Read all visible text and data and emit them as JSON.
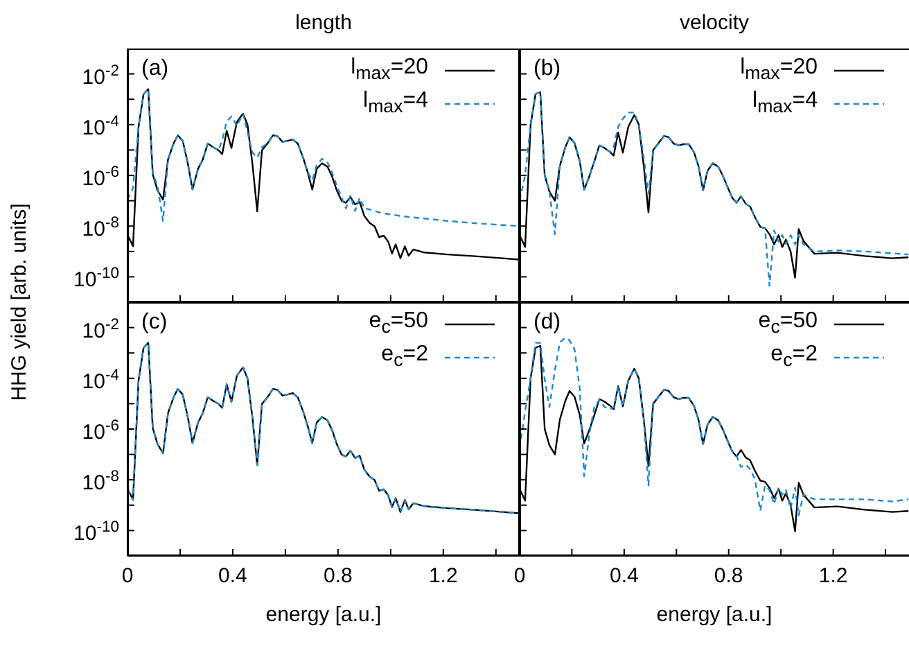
{
  "chart_data": [
    {
      "type": "line",
      "title": "length",
      "ylabel": "HHG yield [arb. units]",
      "annotations": [
        "(a)"
      ],
      "log": "y",
      "legend": "top right",
      "tick_labels": "y",
      "xlim": [
        0,
        1.49
      ],
      "ylim": [
        1e-11,
        0.1
      ],
      "xticks": [
        0,
        {
          "value": 0.2,
          "label": null
        },
        0.4,
        {
          "value": 0.6,
          "label": null
        },
        0.8,
        {
          "value": 1.0,
          "label": null
        },
        1.2,
        {
          "value": 1.4,
          "label": null
        }
      ],
      "yticks": [
        {
          "value": 1e-11,
          "label": null
        },
        {
          "value": 1e-10,
          "label": "10$^{-10}$"
        },
        {
          "value": 1e-09,
          "label": null
        },
        {
          "value": 1e-08,
          "label": "10$^{-8}$"
        },
        {
          "value": 1e-07,
          "label": null
        },
        {
          "value": 1e-06,
          "label": "10$^{-6}$"
        },
        {
          "value": 1e-05,
          "label": null
        },
        {
          "value": 0.0001,
          "label": "10$^{-4}$"
        },
        {
          "value": 0.001,
          "label": null
        },
        {
          "value": 0.01,
          "label": "10$^{-2}$"
        },
        {
          "value": 0.1,
          "label": null
        }
      ],
      "x": [
        0,
        0.021,
        0.042,
        0.061,
        0.079,
        0.096,
        0.114,
        0.135,
        0.154,
        0.175,
        0.191,
        0.21,
        0.23,
        0.247,
        0.268,
        0.286,
        0.305,
        0.325,
        0.346,
        0.36,
        0.377,
        0.395,
        0.416,
        0.439,
        0.456,
        0.475,
        0.493,
        0.511,
        0.532,
        0.553,
        0.57,
        0.589,
        0.609,
        0.628,
        0.647,
        0.667,
        0.684,
        0.702,
        0.719,
        0.739,
        0.76,
        0.777,
        0.795,
        0.814,
        0.83,
        0.847,
        0.865,
        0.882,
        0.9,
        0.921,
        0.939,
        0.956,
        0.974,
        0.991,
        1.005,
        1.019,
        1.037,
        1.054,
        1.068,
        1.086,
        1.128,
        1.216,
        1.321,
        1.426,
        1.488
      ],
      "series": [
        {
          "name": "l$_{max}$=20",
          "color": "#000000",
          "line_style": "solid",
          "values": [
            4.6e-09,
            1.6e-09,
            8.1e-05,
            0.0016,
            0.0025,
            1.1e-06,
            2.6e-07,
            1.1e-07,
            4.2e-06,
            1.8e-05,
            3.8e-05,
            2.3e-05,
            2.7e-06,
            2.8e-07,
            1.8e-06,
            4.2e-06,
            1.8e-05,
            1.3e-05,
            9.8e-06,
            6.9e-06,
            5.8e-05,
            1.2e-05,
            0.00013,
            0.00027,
            0.0001,
            2.7e-06,
            3.8e-08,
            9.8e-06,
            1.8e-05,
            3.8e-05,
            3.5e-05,
            2.1e-05,
            2.3e-05,
            2.6e-05,
            1.8e-05,
            5.1e-06,
            1.4e-06,
            2.8e-07,
            1.8e-06,
            3e-06,
            2.2e-06,
            9.3e-07,
            2.6e-07,
            9.8e-08,
            8.3e-08,
            1.4e-07,
            7.2e-08,
            8.9e-08,
            2.5e-08,
            1.3e-08,
            9.8e-09,
            3.7e-09,
            4.2e-09,
            2.4e-09,
            8.3e-10,
            1.9e-09,
            5.4e-10,
            1.6e-09,
            6.8e-10,
            1.2e-09,
            9.1e-10,
            7.6e-10,
            6.5e-10,
            5.4e-10,
            4.8e-10
          ]
        },
        {
          "name": "l$_{max}$=4",
          "color": "#1e88d0",
          "line_style": "dashed",
          "values": [
            1.1e-07,
            3.2e-07,
            8.1e-05,
            0.0016,
            0.0025,
            1.1e-06,
            4e-07,
            1.6e-08,
            4.2e-06,
            1.8e-05,
            3.8e-05,
            2.3e-05,
            2.7e-06,
            2.8e-07,
            1.8e-06,
            4.2e-06,
            1.8e-05,
            1.3e-05,
            9.8e-06,
            2.5e-05,
            0.00013,
            0.00021,
            8.9e-05,
            0.00027,
            5e-05,
            7.9e-06,
            5e-06,
            1.3e-05,
            1.8e-05,
            3.8e-05,
            3.5e-05,
            2.1e-05,
            2.3e-05,
            2.6e-05,
            1.8e-05,
            5.1e-06,
            1.4e-06,
            6.3e-07,
            2.5e-06,
            4.5e-06,
            3.2e-06,
            1.3e-06,
            4e-07,
            1.3e-07,
            5e-08,
            1.6e-07,
            4e-08,
            1.3e-07,
            5e-08,
            4.5e-08,
            4e-08,
            3.5e-08,
            3.2e-08,
            3e-08,
            2.8e-08,
            2.7e-08,
            2.5e-08,
            2.4e-08,
            2.3e-08,
            2.2e-08,
            2e-08,
            1.6e-08,
            1.3e-08,
            1.1e-08,
            1e-08
          ]
        }
      ]
    },
    {
      "type": "line",
      "title": "velocity",
      "annotations": [
        "(b)"
      ],
      "log": "y",
      "legend": "top right",
      "tick_labels": false,
      "xlim": [
        0,
        1.49
      ],
      "ylim": [
        1e-11,
        0.1
      ],
      "xticks": [
        0,
        {
          "value": 0.2,
          "label": null
        },
        0.4,
        {
          "value": 0.6,
          "label": null
        },
        0.8,
        {
          "value": 1.0,
          "label": null
        },
        1.2,
        {
          "value": 1.4,
          "label": null
        }
      ],
      "yticks": [
        {
          "value": 1e-11,
          "label": null
        },
        {
          "value": 1e-10,
          "label": null
        },
        {
          "value": 1e-09,
          "label": null
        },
        {
          "value": 1e-08,
          "label": null
        },
        {
          "value": 1e-07,
          "label": null
        },
        {
          "value": 1e-06,
          "label": null
        },
        {
          "value": 1e-05,
          "label": null
        },
        {
          "value": 0.0001,
          "label": null
        },
        {
          "value": 0.001,
          "label": null
        },
        {
          "value": 0.01,
          "label": null
        },
        {
          "value": 0.1,
          "label": null
        }
      ],
      "x": [
        0,
        0.021,
        0.042,
        0.061,
        0.079,
        0.096,
        0.114,
        0.135,
        0.154,
        0.175,
        0.191,
        0.21,
        0.23,
        0.247,
        0.268,
        0.286,
        0.305,
        0.325,
        0.346,
        0.36,
        0.377,
        0.395,
        0.416,
        0.439,
        0.456,
        0.475,
        0.493,
        0.511,
        0.532,
        0.553,
        0.57,
        0.589,
        0.609,
        0.628,
        0.647,
        0.667,
        0.684,
        0.702,
        0.719,
        0.739,
        0.76,
        0.777,
        0.795,
        0.814,
        0.83,
        0.847,
        0.865,
        0.882,
        0.9,
        0.921,
        0.939,
        0.956,
        0.974,
        0.991,
        1.005,
        1.019,
        1.037,
        1.054,
        1.068,
        1.086,
        1.128,
        1.216,
        1.321,
        1.426,
        1.488
      ],
      "series": [
        {
          "name": "l$_{max}$=20",
          "color": "#000000",
          "line_style": "solid",
          "values": [
            4.4e-09,
            1.5e-09,
            0.0001,
            0.0016,
            0.0019,
            1e-06,
            2.3e-07,
            1e-07,
            2.4e-06,
            1.3e-05,
            3.2e-05,
            1.9e-05,
            3.6e-06,
            2.7e-07,
            1e-06,
            3.6e-06,
            1.5e-05,
            1.2e-05,
            8.3e-06,
            6e-06,
            4.9e-05,
            7.8e-06,
            8.3e-05,
            0.00024,
            0.0001,
            2.4e-06,
            3.5e-08,
            1e-05,
            1.9e-05,
            3.6e-05,
            3.2e-05,
            1.8e-05,
            1.5e-05,
            1.7e-05,
            1.7e-05,
            8.3e-06,
            2.4e-06,
            2.6e-07,
            1.5e-06,
            3e-06,
            2.2e-06,
            1e-06,
            3.6e-07,
            1.3e-07,
            8.3e-08,
            1.5e-07,
            7.6e-08,
            5.9e-08,
            2.3e-08,
            9.3e-09,
            8.3e-09,
            4.8e-09,
            1.9e-09,
            4.4e-09,
            1.5e-09,
            2.9e-09,
            1e-09,
            9.3e-11,
            7.6e-09,
            2.6e-09,
            8.1e-10,
            8.9e-10,
            6.6e-10,
            5.4e-10,
            5.9e-10
          ]
        },
        {
          "name": "l$_{max}$=4",
          "color": "#1e88d0",
          "line_style": "dashed",
          "values": [
            1e-07,
            1e-06,
            0.0001,
            0.0016,
            0.0019,
            1e-06,
            2.3e-07,
            4.8e-09,
            2.4e-06,
            1.3e-05,
            3.2e-05,
            1.9e-05,
            3.6e-06,
            2.7e-07,
            1e-06,
            3.6e-06,
            1.5e-05,
            1.2e-05,
            8.3e-06,
            1.3e-05,
            8.3e-05,
            0.00017,
            0.0003,
            0.0003,
            0.0001,
            5e-06,
            1.9e-07,
            1e-05,
            1.9e-05,
            3.6e-05,
            3.2e-05,
            1.8e-05,
            1.5e-05,
            1.7e-05,
            1.7e-05,
            8.3e-06,
            2.4e-06,
            2.6e-07,
            1.5e-06,
            3e-06,
            2.2e-06,
            1e-06,
            3.6e-07,
            1.3e-07,
            8.3e-08,
            1.5e-07,
            7.6e-08,
            5.9e-08,
            2.3e-08,
            9.3e-09,
            8.3e-09,
            4.4e-11,
            6.8e-09,
            2.4e-09,
            4.4e-09,
            2e-09,
            4.4e-09,
            1.9e-09,
            4.4e-09,
            1.9e-09,
            1e-09,
            1.1e-09,
            1e-09,
            8.5e-10,
            7.6e-10
          ]
        }
      ]
    },
    {
      "type": "line",
      "xlabel": "energy [a.u.]",
      "annotations": [
        "(c)"
      ],
      "log": "y",
      "legend": "top right",
      "xlim": [
        0,
        1.49
      ],
      "ylim": [
        1e-11,
        0.1
      ],
      "xticks": [
        0,
        {
          "value": 0.2,
          "label": null
        },
        0.4,
        {
          "value": 0.6,
          "label": null
        },
        0.8,
        {
          "value": 1.0,
          "label": null
        },
        1.2,
        {
          "value": 1.4,
          "label": null
        }
      ],
      "yticks": [
        {
          "value": 1e-11,
          "label": null
        },
        {
          "value": 1e-10,
          "label": "10$^{-10}$"
        },
        {
          "value": 1e-09,
          "label": null
        },
        {
          "value": 1e-08,
          "label": "10$^{-8}$"
        },
        {
          "value": 1e-07,
          "label": null
        },
        {
          "value": 1e-06,
          "label": "10$^{-6}$"
        },
        {
          "value": 1e-05,
          "label": null
        },
        {
          "value": 0.0001,
          "label": "10$^{-4}$"
        },
        {
          "value": 0.001,
          "label": null
        },
        {
          "value": 0.01,
          "label": "10$^{-2}$"
        },
        {
          "value": 0.1,
          "label": null
        }
      ],
      "x": [
        0,
        0.021,
        0.042,
        0.061,
        0.079,
        0.096,
        0.114,
        0.135,
        0.154,
        0.175,
        0.191,
        0.21,
        0.23,
        0.247,
        0.268,
        0.286,
        0.305,
        0.325,
        0.346,
        0.36,
        0.377,
        0.395,
        0.416,
        0.439,
        0.456,
        0.475,
        0.493,
        0.511,
        0.532,
        0.553,
        0.57,
        0.589,
        0.609,
        0.628,
        0.647,
        0.667,
        0.684,
        0.702,
        0.719,
        0.739,
        0.76,
        0.777,
        0.795,
        0.814,
        0.83,
        0.847,
        0.865,
        0.882,
        0.9,
        0.921,
        0.939,
        0.956,
        0.974,
        0.991,
        1.005,
        1.019,
        1.037,
        1.054,
        1.068,
        1.086,
        1.128,
        1.216,
        1.321,
        1.426,
        1.488
      ],
      "series": [
        {
          "name": "e$_{c}$=50",
          "color": "#000000",
          "line_style": "solid",
          "values": [
            4.6e-09,
            1.6e-09,
            8.1e-05,
            0.0016,
            0.0025,
            1.1e-06,
            2.6e-07,
            1.1e-07,
            4.2e-06,
            1.8e-05,
            3.8e-05,
            2.3e-05,
            2.7e-06,
            2.8e-07,
            1.8e-06,
            4.2e-06,
            1.8e-05,
            1.3e-05,
            9.8e-06,
            6.9e-06,
            5.8e-05,
            1.2e-05,
            0.00013,
            0.00027,
            0.0001,
            2.7e-06,
            3.8e-08,
            9.8e-06,
            1.8e-05,
            3.8e-05,
            3.5e-05,
            2.1e-05,
            2.3e-05,
            2.6e-05,
            1.8e-05,
            5.1e-06,
            1.4e-06,
            2.8e-07,
            1.8e-06,
            3e-06,
            2.2e-06,
            9.3e-07,
            2.6e-07,
            9.8e-08,
            8.3e-08,
            1.4e-07,
            7.2e-08,
            8.9e-08,
            2.5e-08,
            1.3e-08,
            9.8e-09,
            3.7e-09,
            4.2e-09,
            2.4e-09,
            8.3e-10,
            1.9e-09,
            5.4e-10,
            1.6e-09,
            6.8e-10,
            1.2e-09,
            9.1e-10,
            7.6e-10,
            6.5e-10,
            5.4e-10,
            4.8e-10
          ]
        },
        {
          "name": "e$_{c}$=2",
          "color": "#1e88d0",
          "line_style": "dashed",
          "values": [
            4.6e-09,
            1.6e-09,
            8.1e-05,
            0.0016,
            0.0025,
            1.1e-06,
            2.6e-07,
            1.1e-07,
            4.2e-06,
            1.8e-05,
            3.8e-05,
            2.3e-05,
            2.7e-06,
            2.8e-07,
            1.8e-06,
            4.2e-06,
            1.8e-05,
            1.3e-05,
            9.8e-06,
            6.9e-06,
            5.8e-05,
            1.2e-05,
            0.00013,
            0.00027,
            0.0001,
            2.7e-06,
            3.8e-08,
            9.8e-06,
            1.8e-05,
            3.8e-05,
            3.5e-05,
            2.1e-05,
            2.3e-05,
            2.6e-05,
            1.8e-05,
            5.1e-06,
            1.4e-06,
            2.8e-07,
            1.8e-06,
            3e-06,
            2.2e-06,
            9.3e-07,
            2.6e-07,
            9.8e-08,
            8.3e-08,
            1.4e-07,
            7.2e-08,
            8.9e-08,
            2.5e-08,
            1.3e-08,
            9.8e-09,
            3.7e-09,
            4.2e-09,
            2.4e-09,
            8.3e-10,
            1.9e-09,
            5.4e-10,
            1.6e-09,
            6.8e-10,
            1.2e-09,
            9.1e-10,
            7.6e-10,
            6.5e-10,
            5.4e-10,
            4.8e-10
          ]
        }
      ]
    },
    {
      "type": "line",
      "xlabel": "energy [a.u.]",
      "annotations": [
        "(d)"
      ],
      "log": "y",
      "legend": "top right",
      "tick_labels": "x",
      "xlim": [
        0,
        1.49
      ],
      "ylim": [
        1e-11,
        0.1
      ],
      "xticks": [
        0,
        {
          "value": 0.2,
          "label": null
        },
        0.4,
        {
          "value": 0.6,
          "label": null
        },
        0.8,
        {
          "value": 1.0,
          "label": null
        },
        1.2,
        {
          "value": 1.4,
          "label": null
        }
      ],
      "yticks": [
        {
          "value": 1e-11,
          "label": null
        },
        {
          "value": 1e-10,
          "label": null
        },
        {
          "value": 1e-09,
          "label": null
        },
        {
          "value": 1e-08,
          "label": null
        },
        {
          "value": 1e-07,
          "label": null
        },
        {
          "value": 1e-06,
          "label": null
        },
        {
          "value": 1e-05,
          "label": null
        },
        {
          "value": 0.0001,
          "label": null
        },
        {
          "value": 0.001,
          "label": null
        },
        {
          "value": 0.01,
          "label": null
        },
        {
          "value": 0.1,
          "label": null
        }
      ],
      "x": [
        0,
        0.021,
        0.042,
        0.061,
        0.079,
        0.096,
        0.114,
        0.135,
        0.154,
        0.175,
        0.191,
        0.21,
        0.23,
        0.247,
        0.268,
        0.286,
        0.305,
        0.325,
        0.346,
        0.36,
        0.377,
        0.395,
        0.416,
        0.439,
        0.456,
        0.475,
        0.493,
        0.511,
        0.532,
        0.553,
        0.57,
        0.589,
        0.609,
        0.628,
        0.647,
        0.667,
        0.684,
        0.702,
        0.719,
        0.739,
        0.76,
        0.777,
        0.795,
        0.814,
        0.83,
        0.847,
        0.865,
        0.882,
        0.9,
        0.921,
        0.939,
        0.956,
        0.974,
        0.991,
        1.005,
        1.019,
        1.037,
        1.054,
        1.068,
        1.086,
        1.128,
        1.216,
        1.321,
        1.426,
        1.488
      ],
      "series": [
        {
          "name": "e$_{c}$=50",
          "color": "#000000",
          "line_style": "solid",
          "values": [
            4.4e-09,
            1.5e-09,
            0.0001,
            0.0016,
            0.0019,
            1e-06,
            2.3e-07,
            1e-07,
            2.4e-06,
            1.3e-05,
            3.2e-05,
            1.9e-05,
            3.6e-06,
            2.7e-07,
            1e-06,
            3.6e-06,
            1.5e-05,
            1.2e-05,
            8.3e-06,
            6e-06,
            4.9e-05,
            7.8e-06,
            8.3e-05,
            0.00024,
            0.0001,
            2.4e-06,
            3.5e-08,
            1e-05,
            1.9e-05,
            3.6e-05,
            3.2e-05,
            1.8e-05,
            1.5e-05,
            1.7e-05,
            1.7e-05,
            8.3e-06,
            2.4e-06,
            2.6e-07,
            1.5e-06,
            3e-06,
            2.2e-06,
            1e-06,
            3.6e-07,
            1.3e-07,
            8.3e-08,
            1.5e-07,
            7.6e-08,
            5.9e-08,
            2.3e-08,
            9.3e-09,
            8.3e-09,
            4.8e-09,
            1.9e-09,
            4.4e-09,
            1.5e-09,
            2.9e-09,
            1e-09,
            9.3e-11,
            7.6e-09,
            2.6e-09,
            8.1e-10,
            8.9e-10,
            6.6e-10,
            5.4e-10,
            5.9e-10
          ]
        },
        {
          "name": "e$_{c}$=2",
          "color": "#1e88d0",
          "line_style": "dashed",
          "values": [
            1.7e-07,
            4.9e-06,
            0.0001,
            0.0025,
            0.0025,
            9.1e-05,
            7.4e-06,
            0.00021,
            0.0026,
            0.004,
            0.0032,
            0.0014,
            4e-05,
            1.4e-08,
            7.4e-07,
            7.4e-06,
            1.4e-05,
            7.4e-06,
            6e-06,
            7.4e-06,
            4.9e-05,
            7.8e-06,
            8.3e-05,
            0.00024,
            0.0001,
            2.4e-06,
            6e-09,
            1e-05,
            1.9e-05,
            3.6e-05,
            3.2e-05,
            1.8e-05,
            1.5e-05,
            1.7e-05,
            1.7e-05,
            8.3e-06,
            2.4e-06,
            2.6e-07,
            1.5e-06,
            3e-06,
            2.2e-06,
            1e-06,
            3.6e-07,
            1.3e-07,
            9.1e-08,
            3.2e-08,
            4e-08,
            2.6e-08,
            1.1e-08,
            6e-10,
            6e-09,
            4e-09,
            1.1e-09,
            4.9e-09,
            2.6e-09,
            4e-09,
            7.4e-10,
            4.9e-09,
            4e-10,
            2.6e-09,
            1.7e-09,
            1.7e-09,
            1.7e-09,
            1.4e-09,
            1.7e-09
          ]
        }
      ]
    }
  ]
}
